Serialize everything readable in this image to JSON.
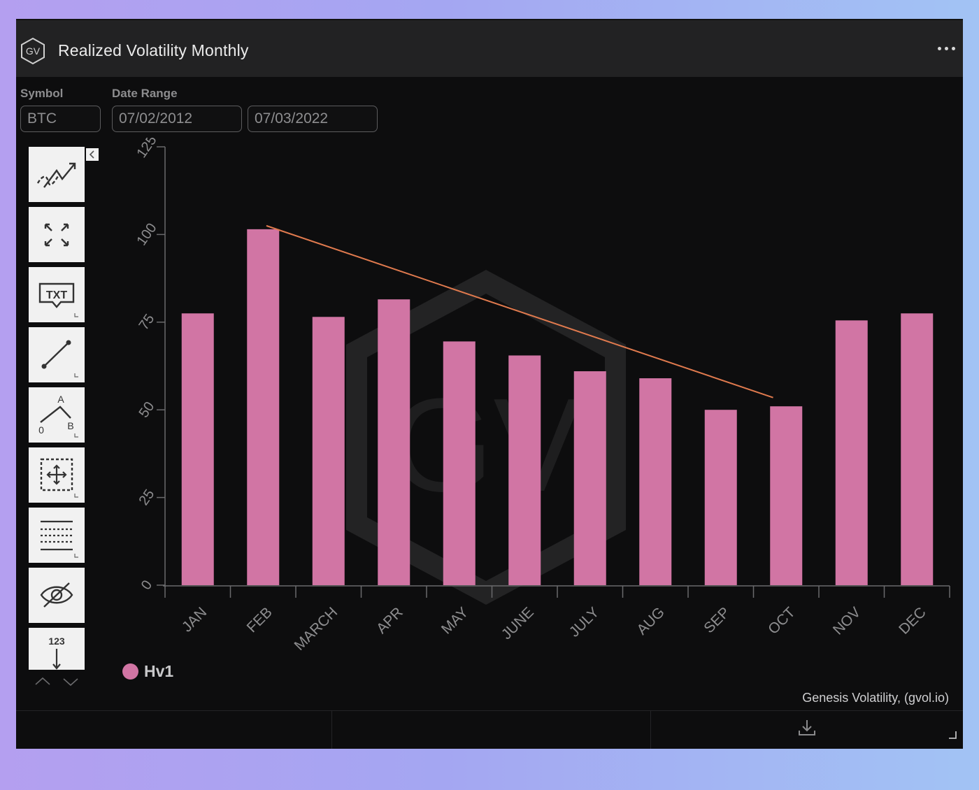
{
  "header": {
    "title": "Realized Volatility Monthly",
    "logo_text": "GV",
    "menu_icon": "more-horizontal-icon"
  },
  "filters": {
    "symbol_label": "Symbol",
    "symbol_value": "BTC",
    "date_range_label": "Date Range",
    "date_start": "07/02/2012",
    "date_end": "07/03/2022"
  },
  "toolbar": {
    "items": [
      "trend-tools-icon",
      "fullscreen-icon",
      "text-annotation-icon",
      "line-tool-icon",
      "pattern-abc-icon",
      "measure-tool-icon",
      "fibonacci-lines-icon",
      "hide-drawings-icon",
      "number-tool-icon"
    ],
    "pattern_letters": [
      "A",
      "0",
      "B"
    ],
    "text_tool_label": "TXT",
    "number_tool_label": "123"
  },
  "chart_data": {
    "type": "bar",
    "title": "Realized Volatility Monthly",
    "categories": [
      "JAN",
      "FEB",
      "MARCH",
      "APR",
      "MAY",
      "JUNE",
      "JULY",
      "AUG",
      "SEP",
      "OCT",
      "NOV",
      "DEC"
    ],
    "series": [
      {
        "name": "Hv1",
        "color": "#d175a4",
        "values": [
          77.5,
          101.5,
          76.5,
          81.5,
          69.5,
          65.5,
          61,
          59,
          50,
          51,
          75.5,
          77.5
        ]
      }
    ],
    "ylim": [
      0,
      125
    ],
    "yticks": [
      0,
      25,
      50,
      75,
      100,
      125
    ],
    "trendline": {
      "color": "#e07a4e",
      "from": {
        "x": 1.55,
        "y": 102.5
      },
      "to": {
        "x": 9.3,
        "y": 53.5
      }
    },
    "watermark": "GV",
    "legend": "bottom-left",
    "grid": false
  },
  "credit": "Genesis Volatility, (gvol.io)",
  "footer": {
    "download_icon": "download-icon"
  }
}
